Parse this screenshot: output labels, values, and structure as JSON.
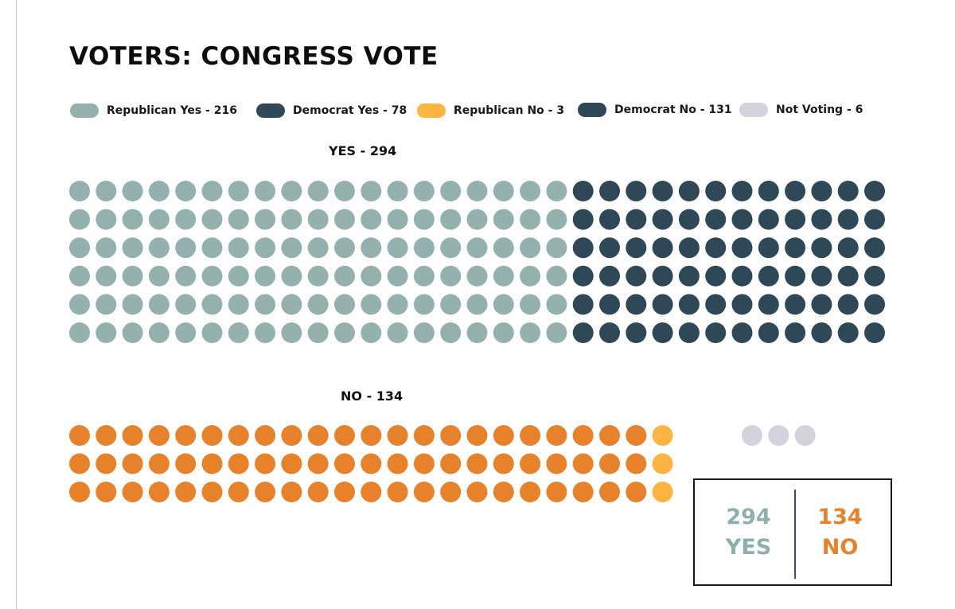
{
  "title": "VOTERS: CONGRESS VOTE",
  "legend": [
    {
      "label": "Republican Yes - 216",
      "color": "#94b1ae"
    },
    {
      "label": "Democrat Yes - 78",
      "color": "#2f4858"
    },
    {
      "label": "Republican No - 3",
      "color": "#fbb540"
    },
    {
      "label": "Democrat No - 131",
      "color": "#2f4858"
    },
    {
      "label": "Not Voting - 6",
      "color": "#d3d2dd"
    }
  ],
  "yes_label": "YES - 294",
  "no_label": "NO - 134",
  "totals": {
    "yes_value": "294",
    "yes_word": "YES",
    "no_value": "134",
    "no_word": "NO"
  },
  "colors": {
    "republican_yes": "#94b1ae",
    "democrat_yes": "#2f4858",
    "republican_no": "#fbb540",
    "democrat_no_dots": "#e8822a",
    "not_voting": "#d3d2dd"
  },
  "chart_data": {
    "type": "waffle",
    "title": "VOTERS: CONGRESS VOTE",
    "series": [
      {
        "name": "Republican Yes",
        "value": 216
      },
      {
        "name": "Democrat Yes",
        "value": 78
      },
      {
        "name": "Republican No",
        "value": 3
      },
      {
        "name": "Democrat No",
        "value": 131
      },
      {
        "name": "Not Voting",
        "value": 6
      }
    ],
    "groups": {
      "yes": {
        "label": "YES - 294",
        "total": 294,
        "rows": 6,
        "columns": 31,
        "segments": [
          {
            "series": "Republican Yes",
            "dot_columns": 19
          },
          {
            "series": "Democrat Yes",
            "dot_columns": 12
          }
        ]
      },
      "no": {
        "label": "NO - 134",
        "total": 134,
        "rows": 3,
        "columns": 23,
        "segments": [
          {
            "series": "Democrat No",
            "dot_columns": 22
          },
          {
            "series": "Republican No",
            "dot_columns": 1
          }
        ]
      },
      "not_voting": {
        "dots_shown": 3
      }
    }
  }
}
